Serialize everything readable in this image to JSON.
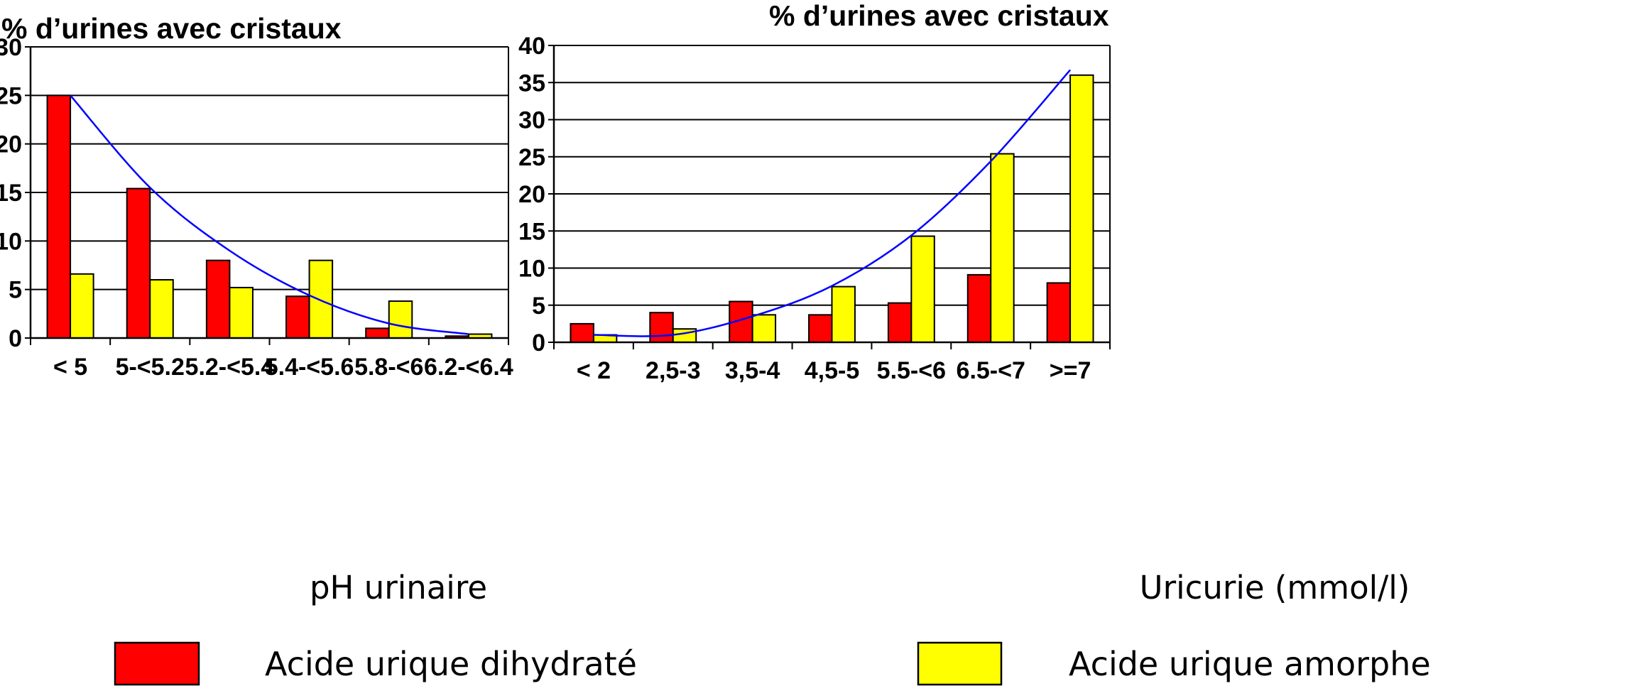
{
  "legend": {
    "items": [
      {
        "label": "Acide urique dihydraté",
        "color": "#ff0000"
      },
      {
        "label": "Acide urique amorphe",
        "color": "#ffff00"
      }
    ]
  },
  "chart_data": [
    {
      "type": "bar",
      "title": "",
      "ylabel": "% d’urines avec cristaux",
      "xlabel": "pH urinaire",
      "categories": [
        "< 5",
        "5-<5.2",
        "5.2-<5.4",
        "5.4-<5.6",
        "5.8-<6",
        "6.2-<6.4"
      ],
      "ylim": [
        0,
        30
      ],
      "yticks": [
        0,
        5,
        10,
        15,
        20,
        25,
        30
      ],
      "grid": true,
      "series": [
        {
          "name": "Acide urique dihydraté",
          "color": "#ff0000",
          "values": [
            25,
            15.4,
            8,
            4.3,
            1,
            0.2
          ]
        },
        {
          "name": "Acide urique amorphe",
          "color": "#ffff00",
          "values": [
            6.6,
            6,
            5.2,
            8,
            3.8,
            0.4
          ]
        }
      ],
      "trendline": {
        "color": "#0000ff",
        "values": [
          25,
          15.5,
          9,
          4.4,
          1.5,
          0.4
        ]
      }
    },
    {
      "type": "bar",
      "title": "",
      "ylabel": "% d’urines avec cristaux",
      "xlabel": "Uricurie (mmol/l)",
      "categories": [
        "< 2",
        "2,5-3",
        "3,5-4",
        "4,5-5",
        "5.5-<6",
        "6.5-<7",
        ">=7"
      ],
      "ylim": [
        0,
        40
      ],
      "yticks": [
        0,
        5,
        10,
        15,
        20,
        25,
        30,
        35,
        40
      ],
      "grid": true,
      "series": [
        {
          "name": "Acide urique dihydraté",
          "color": "#ff0000",
          "values": [
            2.5,
            4,
            5.5,
            3.7,
            5.3,
            9.1,
            8
          ]
        },
        {
          "name": "Acide urique amorphe",
          "color": "#ffff00",
          "values": [
            1,
            1.8,
            3.7,
            7.5,
            14.3,
            25.4,
            36
          ]
        }
      ],
      "trendline": {
        "color": "#0000ff",
        "values": [
          1,
          1,
          3.5,
          7.6,
          14.4,
          24.4,
          36.7
        ]
      }
    }
  ]
}
